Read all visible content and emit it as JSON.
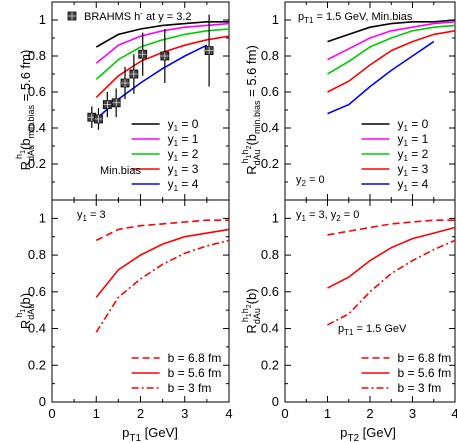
{
  "chart_data": [
    {
      "type": "line",
      "panel": "top-left",
      "ylabel": "R_dAu^h1(b_min.bias = 5.6 fm)",
      "ylim": [
        0,
        1.1
      ],
      "xlim": [
        0,
        4
      ],
      "annotations": [
        "Min.bias"
      ],
      "legend_position": "bottom-right",
      "series": [
        {
          "name": "y1 = 0",
          "color": "#000000",
          "dash": "solid",
          "x": [
            1,
            1.5,
            2,
            2.5,
            3,
            3.5,
            4
          ],
          "values": [
            0.85,
            0.92,
            0.95,
            0.97,
            0.98,
            0.99,
            0.99
          ]
        },
        {
          "name": "y1 = 1",
          "color": "#ff00ff",
          "dash": "solid",
          "x": [
            1,
            1.5,
            2,
            2.5,
            3,
            3.5,
            4
          ],
          "values": [
            0.76,
            0.86,
            0.91,
            0.94,
            0.96,
            0.97,
            0.98
          ]
        },
        {
          "name": "y1 = 2",
          "color": "#00cc00",
          "dash": "solid",
          "x": [
            1,
            1.5,
            2,
            2.5,
            3,
            3.5,
            4
          ],
          "values": [
            0.67,
            0.78,
            0.85,
            0.89,
            0.92,
            0.94,
            0.95
          ]
        },
        {
          "name": "y1 = 3",
          "color": "#ff0000",
          "dash": "solid",
          "x": [
            1,
            1.5,
            2,
            2.5,
            3,
            3.5,
            4
          ],
          "values": [
            0.57,
            0.69,
            0.77,
            0.82,
            0.86,
            0.89,
            0.91
          ]
        },
        {
          "name": "y1 = 4",
          "color": "#0000ff",
          "dash": "solid",
          "x": [
            1,
            1.5,
            2,
            2.5,
            3,
            3.5
          ],
          "values": [
            0.45,
            0.56,
            0.65,
            0.73,
            0.8,
            0.86
          ]
        }
      ],
      "data_series": {
        "name": "BRAHMS h⁻ at y = 3.2",
        "x": [
          0.9,
          1.05,
          1.25,
          1.45,
          1.65,
          1.85,
          2.05,
          2.55,
          3.55
        ],
        "values": [
          0.46,
          0.45,
          0.53,
          0.54,
          0.65,
          0.7,
          0.81,
          0.8,
          0.83
        ],
        "errors": [
          0.06,
          0.06,
          0.07,
          0.08,
          0.09,
          0.11,
          0.12,
          0.15,
          0.2
        ]
      }
    },
    {
      "type": "line",
      "panel": "top-right",
      "ylabel": "R_dAu^h1h2(b_min.bias = 5.6 fm)",
      "ylim": [
        0,
        1.1
      ],
      "xlim": [
        0,
        4
      ],
      "annotations": [
        "p_T1 = 1.5 GeV,  Min.bias",
        "y2 = 0"
      ],
      "legend_position": "bottom-right",
      "series": [
        {
          "name": "y1 = 0",
          "color": "#000000",
          "dash": "solid",
          "x": [
            1,
            1.5,
            2,
            2.5,
            3,
            3.5,
            4
          ],
          "values": [
            0.88,
            0.92,
            0.96,
            0.98,
            0.99,
            0.99,
            1.0
          ]
        },
        {
          "name": "y1 = 1",
          "color": "#ff00ff",
          "dash": "solid",
          "x": [
            1,
            1.5,
            2,
            2.5,
            3,
            3.5,
            4
          ],
          "values": [
            0.78,
            0.84,
            0.9,
            0.94,
            0.96,
            0.98,
            0.99
          ]
        },
        {
          "name": "y1 = 2",
          "color": "#00cc00",
          "dash": "solid",
          "x": [
            1,
            1.5,
            2,
            2.5,
            3,
            3.5,
            4
          ],
          "values": [
            0.7,
            0.77,
            0.85,
            0.9,
            0.94,
            0.96,
            0.97
          ]
        },
        {
          "name": "y1 = 3",
          "color": "#ff0000",
          "dash": "solid",
          "x": [
            1,
            1.5,
            2,
            2.5,
            3,
            3.5,
            4
          ],
          "values": [
            0.6,
            0.66,
            0.75,
            0.83,
            0.88,
            0.92,
            0.94
          ]
        },
        {
          "name": "y1 = 4",
          "color": "#0000ff",
          "dash": "solid",
          "x": [
            1,
            1.5,
            2,
            2.5,
            3,
            3.5
          ],
          "values": [
            0.48,
            0.53,
            0.63,
            0.72,
            0.8,
            0.88
          ]
        }
      ]
    },
    {
      "type": "line",
      "panel": "bottom-left",
      "ylabel": "R_dAu^h1(b)",
      "xlabel": "p_T1 [GeV]",
      "ylim": [
        0,
        1.1
      ],
      "xlim": [
        0,
        4
      ],
      "annotations": [
        "y1 = 3"
      ],
      "legend_position": "bottom-right",
      "series": [
        {
          "name": "b = 6.8 fm",
          "color": "#ff0000",
          "dash": "dashed",
          "x": [
            1,
            1.5,
            2,
            2.5,
            3,
            3.5,
            4
          ],
          "values": [
            0.88,
            0.94,
            0.96,
            0.97,
            0.98,
            0.99,
            0.99
          ]
        },
        {
          "name": "b = 5.6 fm",
          "color": "#ff0000",
          "dash": "solid",
          "x": [
            1,
            1.5,
            2,
            2.5,
            3,
            3.5,
            4
          ],
          "values": [
            0.57,
            0.72,
            0.8,
            0.86,
            0.9,
            0.92,
            0.94
          ]
        },
        {
          "name": "b = 3 fm",
          "color": "#ff0000",
          "dash": "dashdot",
          "x": [
            1,
            1.5,
            2,
            2.5,
            3,
            3.5,
            4
          ],
          "values": [
            0.38,
            0.57,
            0.67,
            0.75,
            0.81,
            0.85,
            0.88
          ]
        }
      ]
    },
    {
      "type": "line",
      "panel": "bottom-right",
      "ylabel": "R_dAu^h1h2(b)",
      "xlabel": "p_T2 [GeV]",
      "ylim": [
        0,
        1.1
      ],
      "xlim": [
        0,
        4
      ],
      "annotations": [
        "y1 = 3,  y2 = 0",
        "p_T1 = 1.5 GeV"
      ],
      "legend_position": "bottom-right",
      "series": [
        {
          "name": "b = 6.8 fm",
          "color": "#ff0000",
          "dash": "dashed",
          "x": [
            1,
            1.5,
            2,
            2.5,
            3,
            3.5,
            4
          ],
          "values": [
            0.91,
            0.93,
            0.95,
            0.97,
            0.98,
            0.99,
            0.99
          ]
        },
        {
          "name": "b = 5.6 fm",
          "color": "#ff0000",
          "dash": "solid",
          "x": [
            1,
            1.5,
            2,
            2.5,
            3,
            3.5,
            4
          ],
          "values": [
            0.62,
            0.68,
            0.77,
            0.84,
            0.89,
            0.92,
            0.95
          ]
        },
        {
          "name": "b = 3 fm",
          "color": "#ff0000",
          "dash": "dashdot",
          "x": [
            1,
            1.5,
            2,
            2.5,
            3,
            3.5,
            4
          ],
          "values": [
            0.42,
            0.48,
            0.6,
            0.7,
            0.77,
            0.83,
            0.88
          ]
        }
      ]
    }
  ],
  "axes": {
    "x_ticks": [
      "0",
      "1",
      "2",
      "3",
      "4"
    ],
    "y_ticks": [
      "0",
      "0.2",
      "0.4",
      "0.6",
      "0.8",
      "1"
    ]
  }
}
